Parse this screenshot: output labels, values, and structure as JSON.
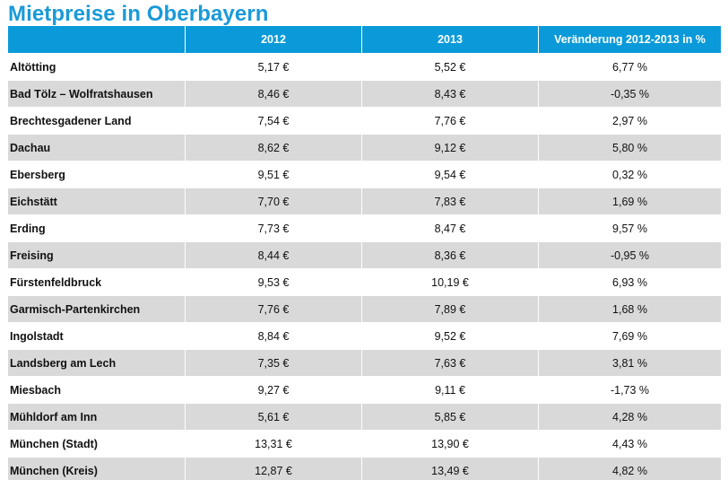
{
  "chart_data": {
    "type": "table",
    "title": "Mietpreise in Oberbayern",
    "columns": [
      "",
      "2012",
      "2013",
      "Veränderung 2012-2013 in %"
    ],
    "rows": [
      {
        "region": "Altötting",
        "y2012": "5,17 €",
        "y2013": "5,52 €",
        "change": "6,77 %"
      },
      {
        "region": "Bad Tölz – Wolfratshausen",
        "y2012": "8,46 €",
        "y2013": "8,43 €",
        "change": "-0,35 %"
      },
      {
        "region": "Brechtesgadener Land",
        "y2012": "7,54 €",
        "y2013": "7,76 €",
        "change": "2,97 %"
      },
      {
        "region": "Dachau",
        "y2012": "8,62 €",
        "y2013": "9,12 €",
        "change": "5,80 %"
      },
      {
        "region": "Ebersberg",
        "y2012": "9,51 €",
        "y2013": "9,54 €",
        "change": "0,32 %"
      },
      {
        "region": "Eichstätt",
        "y2012": "7,70 €",
        "y2013": "7,83 €",
        "change": "1,69 %"
      },
      {
        "region": "Erding",
        "y2012": "7,73 €",
        "y2013": "8,47 €",
        "change": "9,57 %"
      },
      {
        "region": "Freising",
        "y2012": "8,44 €",
        "y2013": "8,36 €",
        "change": "-0,95 %"
      },
      {
        "region": "Fürstenfeldbruck",
        "y2012": "9,53 €",
        "y2013": "10,19 €",
        "change": "6,93 %"
      },
      {
        "region": "Garmisch-Partenkirchen",
        "y2012": "7,76 €",
        "y2013": "7,89 €",
        "change": "1,68 %"
      },
      {
        "region": "Ingolstadt",
        "y2012": "8,84 €",
        "y2013": "9,52 €",
        "change": "7,69 %"
      },
      {
        "region": "Landsberg am Lech",
        "y2012": "7,35 €",
        "y2013": "7,63 €",
        "change": "3,81 %"
      },
      {
        "region": "Miesbach",
        "y2012": "9,27 €",
        "y2013": "9,11 €",
        "change": "-1,73 %"
      },
      {
        "region": "Mühldorf am Inn",
        "y2012": "5,61 €",
        "y2013": "5,85 €",
        "change": "4,28 %"
      },
      {
        "region": "München (Stadt)",
        "y2012": "13,31 €",
        "y2013": "13,90 €",
        "change": "4,43 %"
      },
      {
        "region": "München (Kreis)",
        "y2012": "12,87 €",
        "y2013": "13,49 €",
        "change": "4,82 %"
      }
    ]
  },
  "colors": {
    "title": "#1a9ad8",
    "header_bg": "#0a9ad9",
    "header_text": "#ffffff",
    "row_alt": "#d9d9d9"
  }
}
